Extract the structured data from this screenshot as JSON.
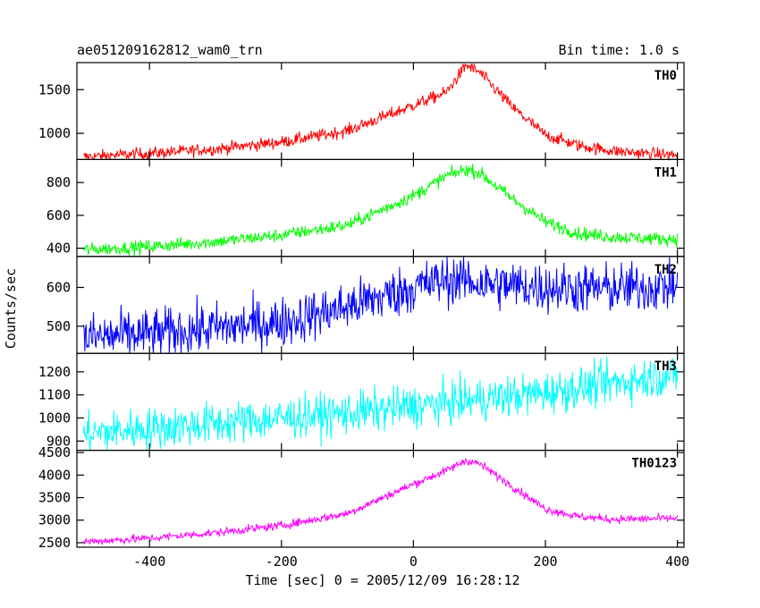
{
  "header": {
    "title": "ae051209162812_wam0_trn",
    "bin_time": "Bin time: 1.0 s"
  },
  "chart_data": {
    "type": "line",
    "xlabel": "Time [sec] 0 = 2005/12/09 16:28:12",
    "ylabel": "Counts/sec",
    "xlim": [
      -510,
      410
    ],
    "xticks": [
      -400,
      -200,
      0,
      200,
      400
    ],
    "series": [
      {
        "name": "TH0",
        "color": "#ff0000",
        "ylim": [
          700,
          1810
        ],
        "yticks": [
          1000,
          1500
        ],
        "noise": 35,
        "x": [
          -500,
          -400,
          -300,
          -200,
          -100,
          0,
          50,
          80,
          100,
          150,
          200,
          250,
          300,
          350,
          400
        ],
        "values": [
          730,
          770,
          820,
          900,
          1030,
          1320,
          1470,
          1780,
          1700,
          1300,
          980,
          860,
          800,
          770,
          750
        ]
      },
      {
        "name": "TH1",
        "color": "#00ff00",
        "ylim": [
          350,
          940
        ],
        "yticks": [
          400,
          600,
          800
        ],
        "noise": 20,
        "x": [
          -500,
          -400,
          -300,
          -200,
          -100,
          0,
          50,
          80,
          100,
          150,
          200,
          250,
          300,
          350,
          400
        ],
        "values": [
          390,
          410,
          440,
          480,
          540,
          720,
          840,
          880,
          860,
          700,
          560,
          490,
          470,
          460,
          455
        ]
      },
      {
        "name": "TH2",
        "color": "#0000ff",
        "ylim": [
          430,
          680
        ],
        "yticks": [
          500,
          600
        ],
        "noise": 32,
        "x": [
          -500,
          -400,
          -300,
          -200,
          -100,
          0,
          50,
          80,
          100,
          150,
          200,
          250,
          300,
          350,
          400
        ],
        "values": [
          470,
          480,
          495,
          510,
          550,
          600,
          620,
          620,
          610,
          605,
          600,
          598,
          597,
          600,
          605
        ]
      },
      {
        "name": "TH3",
        "color": "#00ffff",
        "ylim": [
          860,
          1280
        ],
        "yticks": [
          900,
          1000,
          1100,
          1200
        ],
        "noise": 45,
        "x": [
          -500,
          -400,
          -300,
          -200,
          -100,
          0,
          100,
          200,
          300,
          400
        ],
        "values": [
          930,
          955,
          975,
          1000,
          1020,
          1050,
          1080,
          1110,
          1150,
          1190
        ]
      },
      {
        "name": "TH0123",
        "color": "#ff00ff",
        "ylim": [
          2400,
          4550
        ],
        "yticks": [
          2500,
          3000,
          3500,
          4000,
          4500
        ],
        "noise": 45,
        "x": [
          -500,
          -400,
          -300,
          -200,
          -100,
          0,
          50,
          80,
          100,
          150,
          200,
          250,
          300,
          350,
          400
        ],
        "values": [
          2520,
          2600,
          2720,
          2880,
          3150,
          3800,
          4100,
          4330,
          4250,
          3750,
          3250,
          3080,
          3020,
          3030,
          3040
        ]
      }
    ]
  }
}
